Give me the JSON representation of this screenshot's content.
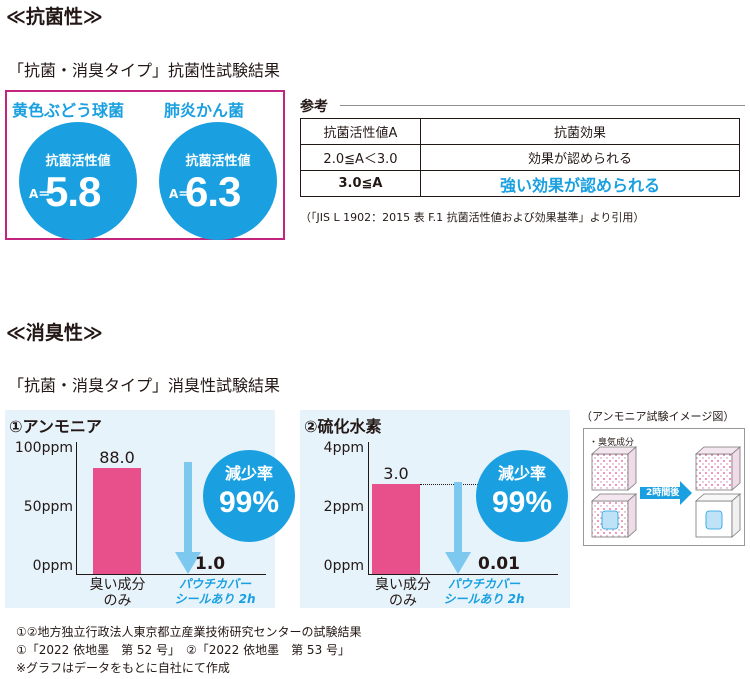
{
  "antibacterial": {
    "heading": "≪抗菌性≫",
    "subtitle": "「抗菌・消臭タイプ」抗菌性試験結果",
    "results": [
      {
        "organism": "黄色ぶどう球菌",
        "metric_label": "抗菌活性値",
        "prefix": "A＝",
        "value": "5.8"
      },
      {
        "organism": "肺炎かん菌",
        "metric_label": "抗菌活性値",
        "prefix": "A＝",
        "value": "6.3"
      }
    ],
    "reference": {
      "title": "参考",
      "headers": [
        "抗菌活性値A",
        "抗菌効果"
      ],
      "rows": [
        [
          "2.0≦A＜3.0",
          "効果が認められる"
        ],
        [
          "3.0≦A",
          "強い効果が認められる"
        ]
      ],
      "source": "（「JIS L 1902：2015 表 F.1 抗菌活性値および効果基準」より引用）"
    }
  },
  "deodorant": {
    "heading": "≪消臭性≫",
    "subtitle": "「抗菌・消臭タイプ」消臭性試験結果",
    "reduction_label": "減少率",
    "reduction_value": "99%",
    "image_caption": "（アンモニア試験イメージ図）",
    "image_legend": "・臭気成分",
    "image_arrow_label": "2時間後"
  },
  "chart_data": [
    {
      "type": "bar",
      "title": "①アンモニア",
      "categories": [
        "臭い成分のみ",
        "パウチカバーシールあり 2h"
      ],
      "values": [
        88.0,
        1.0
      ],
      "value_labels": [
        "88.0",
        "1.0"
      ],
      "yticks": [
        "100ppm",
        "50ppm",
        "0ppm"
      ],
      "ylim": [
        0,
        100
      ],
      "xlabel_lines": [
        [
          "臭い成分",
          "のみ"
        ],
        [
          "パウチカバー",
          "シールあり 2h"
        ]
      ],
      "reduction": "99%"
    },
    {
      "type": "bar",
      "title": "②硫化水素",
      "categories": [
        "臭い成分のみ",
        "パウチカバーシールあり 2h"
      ],
      "values": [
        3.0,
        0.01
      ],
      "value_labels": [
        "3.0",
        "0.01"
      ],
      "yticks": [
        "4ppm",
        "2ppm",
        "0ppm"
      ],
      "ylim": [
        0,
        4
      ],
      "xlabel_lines": [
        [
          "臭い成分",
          "のみ"
        ],
        [
          "パウチカバー",
          "シールあり 2h"
        ]
      ],
      "reduction": "99%"
    }
  ],
  "footnotes": [
    "①②地方独立行政法人東京都立産業技術研究センターの試験結果",
    "①「2022 依地墨　第 52 号」　②「2022 依地墨　第 53 号」",
    "※グラフはデータをもとに自社にて作成"
  ],
  "colors": {
    "accent_blue": "#1aa0e0",
    "bar_pink": "#e8508c",
    "border_magenta": "#c2257d",
    "panel_bg": "#e6f3fb",
    "arrow_blue": "#7cc8ef"
  }
}
